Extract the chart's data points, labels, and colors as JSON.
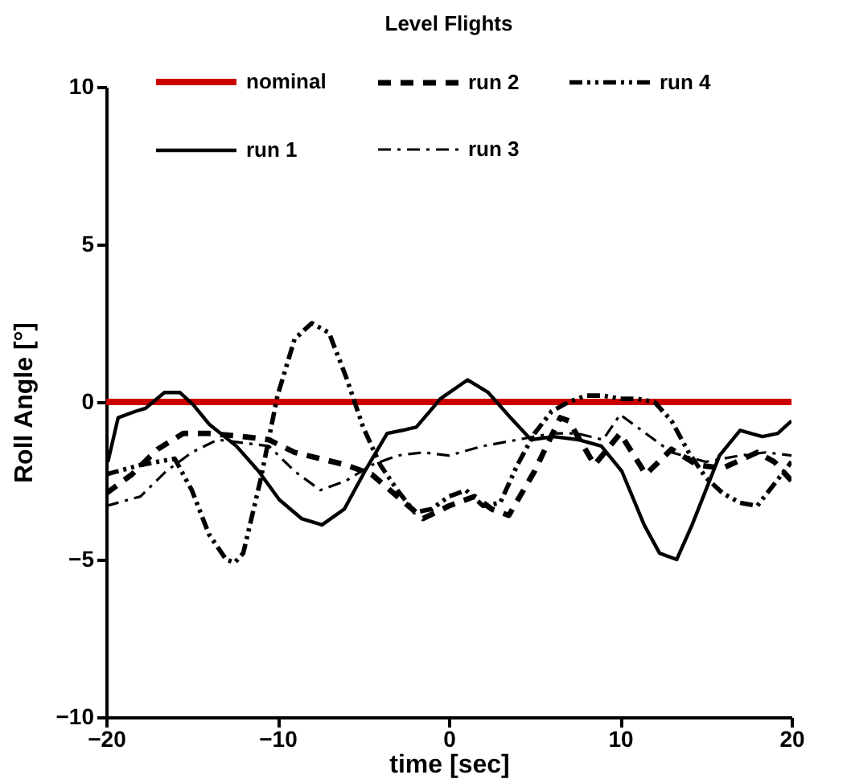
{
  "chart_data": {
    "type": "line",
    "title": "Level Flights",
    "xlabel": "time [sec]",
    "ylabel": "Roll Angle [°]",
    "xlim": [
      -20,
      20
    ],
    "xticks": [
      -20,
      -10,
      0,
      10,
      20
    ],
    "ylim": [
      -10,
      10
    ],
    "yticks": [
      -10,
      -5,
      0,
      5,
      10
    ],
    "grid": false,
    "legend": "top",
    "marker": "none",
    "series": [
      {
        "name": "nominal",
        "color": "#cc0000",
        "line_style": "solid",
        "x": [
          -20,
          20
        ],
        "values": [
          0,
          0
        ]
      },
      {
        "name": "run 1",
        "color": "#000000",
        "line_style": "solid",
        "x": [
          -19.9,
          -19.3,
          -18.3,
          -17.7,
          -16.6,
          -15.7,
          -14.9,
          -14.0,
          -12.4,
          -11.1,
          -9.9,
          -8.6,
          -7.4,
          -6.1,
          -4.9,
          -3.6,
          -2.7,
          -1.9,
          -0.8,
          -0.5,
          1.1,
          2.3,
          3.6,
          4.8,
          6.1,
          7.6,
          8.9,
          10.1,
          11.4,
          12.3,
          13.3,
          14.2,
          15.8,
          17.0,
          18.3,
          19.2,
          20
        ],
        "values": [
          -1.9,
          -0.5,
          -0.3,
          -0.2,
          0.3,
          0.3,
          -0.1,
          -0.7,
          -1.4,
          -2.2,
          -3.1,
          -3.7,
          -3.9,
          -3.4,
          -2.2,
          -1.0,
          -0.9,
          -0.8,
          -0.1,
          0.1,
          0.7,
          0.3,
          -0.5,
          -1.2,
          -1.1,
          -1.2,
          -1.4,
          -2.2,
          -3.9,
          -4.8,
          -5.0,
          -3.9,
          -1.7,
          -0.9,
          -1.1,
          -1.0,
          -0.6
        ]
      },
      {
        "name": "run 2",
        "color": "#000000",
        "line_style": "dashed",
        "x": [
          -20,
          -18.5,
          -17,
          -15.5,
          -14,
          -12,
          -10.5,
          -9,
          -7.5,
          -6,
          -4.5,
          -3,
          -1.5,
          0,
          1.5,
          2.5,
          3.5,
          5,
          6.5,
          7,
          8.5,
          10,
          11.5,
          13,
          14.5,
          16,
          18,
          19,
          20
        ],
        "values": [
          -2.9,
          -2.3,
          -1.5,
          -1.0,
          -1.0,
          -1.1,
          -1.2,
          -1.6,
          -1.8,
          -2.0,
          -2.3,
          -3.0,
          -3.7,
          -3.3,
          -3.0,
          -3.4,
          -3.6,
          -2.2,
          -0.5,
          -0.6,
          -2.0,
          -1.0,
          -2.3,
          -1.5,
          -2.0,
          -2.1,
          -1.6,
          -1.9,
          -2.5
        ]
      },
      {
        "name": "run 3",
        "color": "#000000",
        "line_style": "dashdot",
        "x": [
          -20,
          -18,
          -16.5,
          -15,
          -13.5,
          -12,
          -10.5,
          -9,
          -7.5,
          -6,
          -4.5,
          -3,
          -1.5,
          0,
          2,
          4,
          6,
          7.5,
          9,
          10,
          11.5,
          13,
          15,
          17,
          18.5,
          20
        ],
        "values": [
          -3.3,
          -3.0,
          -2.2,
          -1.6,
          -1.2,
          -1.3,
          -1.4,
          -2.2,
          -2.8,
          -2.5,
          -2.0,
          -1.7,
          -1.6,
          -1.7,
          -1.4,
          -1.2,
          -1.0,
          -1.0,
          -1.2,
          -0.4,
          -1.0,
          -1.6,
          -1.9,
          -1.7,
          -1.6,
          -1.7
        ]
      },
      {
        "name": "run 4",
        "color": "#000000",
        "line_style": "dashdotdot",
        "x": [
          -20,
          -18,
          -16,
          -15,
          -14,
          -13,
          -12.5,
          -12,
          -11,
          -10,
          -9,
          -8,
          -7,
          -6,
          -5,
          -4,
          -3,
          -2,
          -1,
          0,
          1,
          2,
          3,
          4,
          5,
          6,
          7,
          8,
          9,
          10,
          11,
          12,
          13,
          14,
          15,
          16,
          17,
          18,
          19,
          20
        ],
        "values": [
          -2.3,
          -2.0,
          -1.8,
          -2.8,
          -4.2,
          -5.0,
          -5.1,
          -4.8,
          -2.5,
          0.2,
          2.0,
          2.5,
          2.2,
          0.8,
          -0.8,
          -2.0,
          -2.8,
          -3.5,
          -3.4,
          -3.0,
          -2.8,
          -3.3,
          -3.2,
          -2.0,
          -1.0,
          -0.3,
          0.0,
          0.2,
          0.2,
          0.1,
          0.1,
          0.0,
          -0.6,
          -1.6,
          -2.4,
          -2.9,
          -3.2,
          -3.3,
          -2.6,
          -1.9
        ]
      }
    ]
  }
}
